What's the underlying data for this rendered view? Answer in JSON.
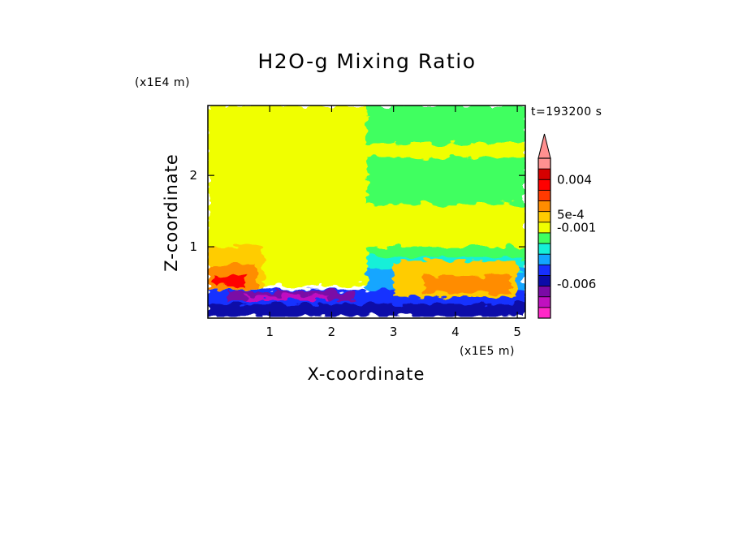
{
  "chart_data": {
    "type": "heatmap",
    "title": "H2O-g Mixing Ratio",
    "xlabel": "X-coordinate",
    "ylabel": "Z-coordinate",
    "x_scale_label": "(x1E5 m)",
    "y_scale_label": "(x1E4 m)",
    "time_label": "t=193200 s",
    "x_range": [
      0,
      5.13
    ],
    "y_range": [
      0,
      2.98
    ],
    "x_ticks": [
      {
        "value": 1,
        "label": "1"
      },
      {
        "value": 2,
        "label": "2"
      },
      {
        "value": 3,
        "label": "3"
      },
      {
        "value": 4,
        "label": "4"
      },
      {
        "value": 5,
        "label": "5"
      }
    ],
    "y_ticks": [
      {
        "value": 1,
        "label": "1"
      },
      {
        "value": 2,
        "label": "2"
      }
    ],
    "colorbar": {
      "levels": [
        "#ff28c8",
        "#c010c0",
        "#7a0aa6",
        "#0b0ba8",
        "#1730ff",
        "#12a6ff",
        "#15f0d8",
        "#40ff60",
        "#f0ff00",
        "#ffcc00",
        "#ff8c00",
        "#ff3a00",
        "#ff0000",
        "#d60000",
        "#ff9090"
      ],
      "labels": [
        {
          "level": 13,
          "text": "0.004"
        },
        {
          "level": 9.7,
          "text": "5e-4"
        },
        {
          "level": 8.5,
          "text": "-0.001"
        },
        {
          "level": 3.2,
          "text": "-0.006"
        }
      ],
      "extend": "max"
    },
    "field_regions": [
      {
        "color": "#f0ff00",
        "x": [
          0,
          5.13
        ],
        "z": [
          0.45,
          2.98
        ]
      },
      {
        "color": "#40ff60",
        "x": [
          2.57,
          5.13
        ],
        "z": [
          2.45,
          2.98
        ]
      },
      {
        "color": "#40ff60",
        "x": [
          2.57,
          5.13
        ],
        "z": [
          1.6,
          2.25
        ]
      },
      {
        "color": "#40ff60",
        "x": [
          2.57,
          5.13
        ],
        "z": [
          0.8,
          1.0
        ]
      },
      {
        "color": "#15f0d8",
        "x": [
          2.57,
          5.13
        ],
        "z": [
          0.6,
          0.85
        ]
      },
      {
        "color": "#12a6ff",
        "x": [
          2.57,
          5.13
        ],
        "z": [
          0.3,
          0.7
        ]
      },
      {
        "color": "#1730ff",
        "x": [
          0,
          5.13
        ],
        "z": [
          0.05,
          0.4
        ]
      },
      {
        "color": "#0b0ba8",
        "x": [
          0,
          5.13
        ],
        "z": [
          0.02,
          0.2
        ]
      },
      {
        "color": "#7a0aa6",
        "x": [
          0.3,
          2.4
        ],
        "z": [
          0.25,
          0.38
        ]
      },
      {
        "color": "#c010c0",
        "x": [
          0.6,
          1.9
        ],
        "z": [
          0.25,
          0.32
        ]
      },
      {
        "color": "#ffcc00",
        "x": [
          0,
          0.9
        ],
        "z": [
          0.4,
          1.0
        ]
      },
      {
        "color": "#ff8c00",
        "x": [
          0,
          0.8
        ],
        "z": [
          0.4,
          0.75
        ]
      },
      {
        "color": "#ff0000",
        "x": [
          0.1,
          0.6
        ],
        "z": [
          0.45,
          0.6
        ]
      },
      {
        "color": "#ffcc00",
        "x": [
          3.0,
          5.0
        ],
        "z": [
          0.3,
          0.8
        ]
      },
      {
        "color": "#ff8c00",
        "x": [
          3.5,
          4.9
        ],
        "z": [
          0.35,
          0.6
        ]
      }
    ]
  }
}
